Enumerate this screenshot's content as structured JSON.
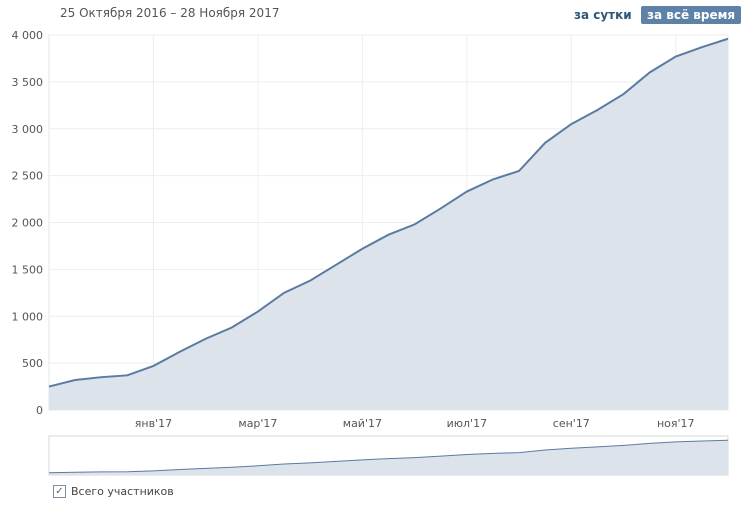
{
  "ui": {
    "date_range": "25 Октября 2016 – 28 Ноября 2017",
    "buttons": [
      "за сутки",
      "за всё время"
    ]
  },
  "chart_data": {
    "type": "area",
    "categories": [
      null,
      null,
      null,
      null,
      "янв'17",
      null,
      null,
      null,
      "мар'17",
      null,
      null,
      null,
      "май'17",
      null,
      null,
      null,
      "июл'17",
      null,
      null,
      null,
      "сен'17",
      null,
      null,
      null,
      "ноя'17",
      null,
      null
    ],
    "series": [
      {
        "name": "Всего участников",
        "color": "#5b7ba3",
        "values": [
          250,
          320,
          350,
          370,
          470,
          620,
          760,
          880,
          1050,
          1250,
          1380,
          1550,
          1720,
          1870,
          1980,
          2150,
          2330,
          2460,
          2550,
          2850,
          3050,
          3200,
          3370,
          3600,
          3770,
          3870,
          3960
        ]
      }
    ],
    "ylim": [
      0,
      4000
    ],
    "yticks": [
      0,
      500,
      {
        "value": 1000,
        "label": "1 000"
      },
      {
        "value": 1500,
        "label": "1 500"
      },
      {
        "value": 2000,
        "label": "2 000"
      },
      {
        "value": 2500,
        "label": "2 500"
      },
      {
        "value": 3000,
        "label": "3 000"
      },
      {
        "value": 3500,
        "label": "3 500"
      },
      {
        "value": 4000,
        "label": "4 000"
      }
    ],
    "grid": true
  }
}
